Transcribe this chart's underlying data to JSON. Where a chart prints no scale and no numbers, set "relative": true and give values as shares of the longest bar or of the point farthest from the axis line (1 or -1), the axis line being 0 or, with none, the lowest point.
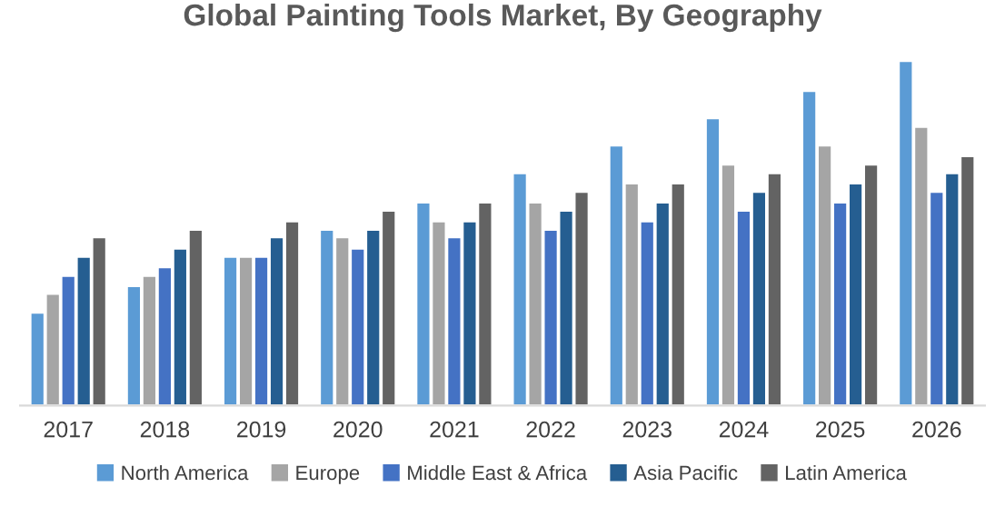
{
  "chart_data": {
    "type": "bar",
    "title": "Global Painting Tools Market, By Geography",
    "relative": true,
    "categories": [
      "2017",
      "2018",
      "2019",
      "2020",
      "2021",
      "2022",
      "2023",
      "2024",
      "2025",
      "2026"
    ],
    "series": [
      {
        "name": "North America",
        "color": "#5b9bd5",
        "values": [
          0.27,
          0.347,
          0.432,
          0.511,
          0.59,
          0.675,
          0.755,
          0.834,
          0.913,
          1.0
        ]
      },
      {
        "name": "Europe",
        "color": "#a5a5a5",
        "values": [
          0.325,
          0.377,
          0.432,
          0.489,
          0.535,
          0.59,
          0.645,
          0.7,
          0.755,
          0.809
        ]
      },
      {
        "name": "Middle East & Africa",
        "color": "#4472c4",
        "values": [
          0.377,
          0.402,
          0.432,
          0.456,
          0.489,
          0.511,
          0.535,
          0.566,
          0.59,
          0.621
        ]
      },
      {
        "name": "Asia Pacific",
        "color": "#255e91",
        "values": [
          0.432,
          0.456,
          0.489,
          0.511,
          0.535,
          0.566,
          0.59,
          0.621,
          0.645,
          0.675
        ]
      },
      {
        "name": "Latin America",
        "color": "#636363",
        "values": [
          0.489,
          0.511,
          0.535,
          0.566,
          0.59,
          0.621,
          0.645,
          0.675,
          0.7,
          0.724
        ]
      }
    ],
    "legend": "bottom",
    "grid": false
  }
}
